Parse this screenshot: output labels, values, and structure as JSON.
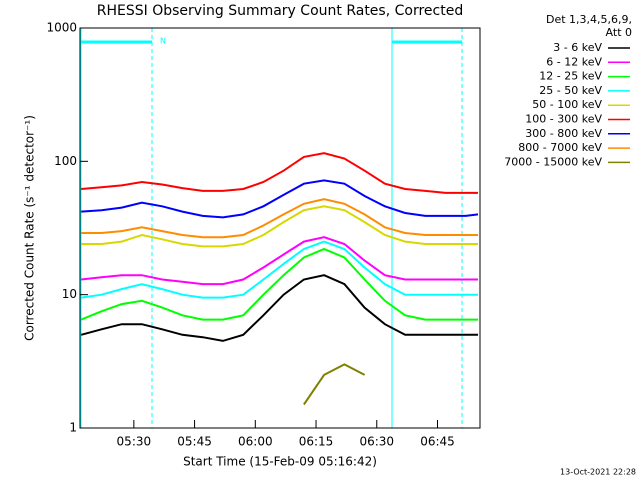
{
  "chart_data": {
    "type": "line",
    "title": "RHESSI Observing Summary Count Rates, Corrected",
    "xlabel": "Start Time (15-Feb-09 05:16:42)",
    "ylabel": "Corrected Count Rate (s⁻¹ detector⁻¹)",
    "legend_title": [
      "Det 1,3,4,5,6,9,",
      "Att 0"
    ],
    "annotation": "N",
    "footer": "13-Oct-2021 22:28",
    "log_scale": true,
    "x": [
      17,
      22,
      27,
      32,
      37,
      42,
      47,
      52,
      57,
      62,
      67,
      72,
      77,
      82,
      87,
      92,
      97,
      102,
      107,
      112,
      115
    ],
    "xlim": [
      16.7,
      115.5
    ],
    "xticks": [
      {
        "value": 30,
        "label": "05:30"
      },
      {
        "value": 45,
        "label": "05:45"
      },
      {
        "value": 60,
        "label": "06:00"
      },
      {
        "value": 75,
        "label": "06:15"
      },
      {
        "value": 90,
        "label": "06:30"
      },
      {
        "value": 105,
        "label": "06:45"
      }
    ],
    "ylim": [
      1,
      1000
    ],
    "yticks": [
      1,
      10,
      100,
      1000
    ],
    "series": [
      {
        "name": "3 - 6 keV",
        "color": "#000000",
        "values": [
          5,
          5.5,
          6,
          6,
          5.5,
          5,
          4.8,
          4.5,
          5,
          7,
          10,
          13,
          14,
          12,
          8,
          6,
          5,
          5,
          5,
          5,
          5
        ]
      },
      {
        "name": "6 - 12 keV",
        "color": "#ff00ff",
        "values": [
          13,
          13.5,
          14,
          14,
          13,
          12.5,
          12,
          12,
          13,
          16,
          20,
          25,
          27,
          24,
          18,
          14,
          13,
          13,
          13,
          13,
          13
        ]
      },
      {
        "name": "12 - 25 keV",
        "color": "#00ff00",
        "values": [
          6.5,
          7.5,
          8.5,
          9,
          8,
          7,
          6.5,
          6.5,
          7,
          10,
          14,
          19,
          22,
          19,
          13,
          9,
          7,
          6.5,
          6.5,
          6.5,
          6.5
        ]
      },
      {
        "name": "25 - 50 keV",
        "color": "#00ffff",
        "values": [
          9.5,
          10,
          11,
          12,
          11,
          10,
          9.5,
          9.5,
          10,
          13,
          17,
          22,
          25,
          22,
          16,
          12,
          10,
          10,
          10,
          10,
          10
        ]
      },
      {
        "name": "50 - 100 keV",
        "color": "#d8d800",
        "values": [
          24,
          24,
          25,
          28,
          26,
          24,
          23,
          23,
          24,
          28,
          35,
          43,
          46,
          43,
          35,
          28,
          25,
          24,
          24,
          24,
          24
        ]
      },
      {
        "name": "100 - 300 keV",
        "color": "#ff0000",
        "values": [
          62,
          64,
          66,
          70,
          67,
          63,
          60,
          60,
          62,
          70,
          85,
          108,
          115,
          105,
          85,
          68,
          62,
          60,
          58,
          58,
          58
        ]
      },
      {
        "name": "300 - 800 keV",
        "color": "#0000ff",
        "values": [
          42,
          43,
          45,
          49,
          46,
          42,
          39,
          38,
          40,
          46,
          56,
          68,
          72,
          68,
          55,
          46,
          41,
          39,
          39,
          39,
          40
        ]
      },
      {
        "name": "800 - 7000 keV",
        "color": "#ff8c00",
        "values": [
          29,
          29,
          30,
          32,
          30,
          28,
          27,
          27,
          28,
          33,
          40,
          48,
          52,
          48,
          40,
          32,
          29,
          28,
          28,
          28,
          28
        ]
      },
      {
        "name": "7000 - 15000 keV",
        "color": "#808000",
        "values": [
          null,
          null,
          null,
          null,
          null,
          null,
          null,
          null,
          null,
          null,
          null,
          1.5,
          2.5,
          3,
          2.5,
          null,
          null,
          null,
          null,
          null,
          null
        ]
      }
    ]
  }
}
